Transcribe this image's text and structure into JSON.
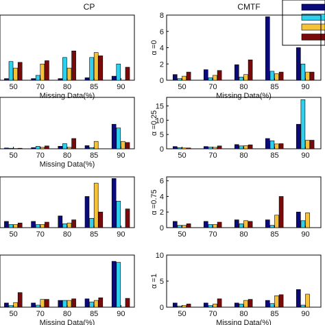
{
  "colors": {
    "series": [
      "#0a0a7a",
      "#2fd0ee",
      "#f6c23a",
      "#7a0a0a"
    ],
    "axis": "#000000"
  },
  "column_titles": [
    "CP",
    "CMTF"
  ],
  "legend": {
    "placement": "top-right",
    "labels_visible": false
  },
  "chart_data": [
    {
      "type": "bar",
      "panel": "CP, row 1",
      "title": "CP",
      "xlabel": "Missing Data(%)",
      "ylabel": "",
      "categories": [
        "50",
        "70",
        "80",
        "85",
        "90"
      ],
      "yticks": [],
      "ylim": [
        0,
        8
      ],
      "series": [
        {
          "values": [
            0.2,
            0.2,
            0.2,
            0.3,
            0.5
          ]
        },
        {
          "values": [
            2.3,
            0.6,
            2.8,
            2.8,
            2.0
          ]
        },
        {
          "values": [
            1.5,
            2.0,
            1.5,
            3.4,
            0.0
          ]
        },
        {
          "values": [
            2.2,
            2.4,
            3.6,
            3.0,
            1.6
          ]
        }
      ]
    },
    {
      "type": "bar",
      "panel": "CMTF, α=0",
      "title": "CMTF",
      "xlabel": "Missing Data(%)",
      "ylabel": "α =0",
      "categories": [
        "50",
        "70",
        "80",
        "85",
        "90"
      ],
      "yticks": [
        "0",
        "2",
        "4",
        "6",
        "8"
      ],
      "ylim": [
        0,
        8
      ],
      "series": [
        {
          "values": [
            0.7,
            1.3,
            1.9,
            7.8,
            4.0
          ]
        },
        {
          "values": [
            0.2,
            0.3,
            0.4,
            1.1,
            2.0
          ]
        },
        {
          "values": [
            0.5,
            0.6,
            0.7,
            0.8,
            1.0
          ]
        },
        {
          "values": [
            1.0,
            1.2,
            2.5,
            1.0,
            1.0
          ]
        }
      ]
    },
    {
      "type": "bar",
      "panel": "CP, row 2",
      "title": "",
      "xlabel": "Missing Data(%)",
      "ylabel": "",
      "categories": [
        "50",
        "70",
        "80",
        "85",
        "90"
      ],
      "yticks": [],
      "ylim": [
        0,
        18
      ],
      "series": [
        {
          "values": [
            0.3,
            0.4,
            0.9,
            1.1,
            8.6
          ]
        },
        {
          "values": [
            0.2,
            0.9,
            1.8,
            0.4,
            7.3
          ]
        },
        {
          "values": [
            0.1,
            0.5,
            0.5,
            2.6,
            2.6
          ]
        },
        {
          "values": [
            0.2,
            1.0,
            3.6,
            0.0,
            2.2
          ]
        }
      ]
    },
    {
      "type": "bar",
      "panel": "CMTF, α=0.25",
      "title": "",
      "xlabel": "",
      "ylabel": "α =0.25",
      "categories": [
        "50",
        "70",
        "80",
        "85",
        "90"
      ],
      "yticks": [
        "0",
        "5",
        "10",
        "15"
      ],
      "ylim": [
        0,
        18
      ],
      "series": [
        {
          "values": [
            0.8,
            0.8,
            1.5,
            3.6,
            8.6
          ]
        },
        {
          "values": [
            0.4,
            0.6,
            1.0,
            2.8,
            17.2
          ]
        },
        {
          "values": [
            0.3,
            0.5,
            1.1,
            1.7,
            3.0
          ]
        },
        {
          "values": [
            0.3,
            1.0,
            1.4,
            1.8,
            3.0
          ]
        }
      ]
    },
    {
      "type": "bar",
      "panel": "CP, row 3",
      "title": "",
      "xlabel": "",
      "ylabel": "",
      "categories": [
        "50",
        "70",
        "80",
        "85",
        "90"
      ],
      "yticks": [],
      "ylim": [
        0,
        6.5
      ],
      "series": [
        {
          "values": [
            0.8,
            0.8,
            1.5,
            4.0,
            6.3
          ]
        },
        {
          "values": [
            0.4,
            0.4,
            0.5,
            1.2,
            3.4
          ]
        },
        {
          "values": [
            0.4,
            0.4,
            0.6,
            5.7,
            0.0
          ]
        },
        {
          "values": [
            0.6,
            0.7,
            1.0,
            2.0,
            2.4
          ]
        }
      ]
    },
    {
      "type": "bar",
      "panel": "CMTF, α=0.75",
      "title": "",
      "xlabel": "",
      "ylabel": "α =0.75",
      "categories": [
        "50",
        "70",
        "80",
        "85",
        "90"
      ],
      "yticks": [
        "0",
        "2",
        "4",
        "6"
      ],
      "ylim": [
        0,
        6.5
      ],
      "series": [
        {
          "values": [
            0.8,
            0.8,
            1.0,
            1.0,
            2.0
          ]
        },
        {
          "values": [
            0.3,
            0.4,
            0.5,
            0.3,
            0.9
          ]
        },
        {
          "values": [
            0.3,
            0.4,
            0.9,
            1.6,
            1.9
          ]
        },
        {
          "values": [
            0.5,
            0.7,
            0.8,
            4.0,
            0.0
          ]
        }
      ]
    },
    {
      "type": "bar",
      "panel": "CP, row 4",
      "title": "",
      "xlabel": "Missing Data(%)",
      "ylabel": "",
      "categories": [
        "50",
        "70",
        "80",
        "85",
        "90"
      ],
      "yticks": [],
      "ylim": [
        0,
        10
      ],
      "series": [
        {
          "values": [
            0.8,
            0.8,
            1.3,
            1.6,
            8.8
          ]
        },
        {
          "values": [
            0.3,
            0.4,
            1.3,
            1.0,
            8.6
          ]
        },
        {
          "values": [
            0.9,
            1.5,
            1.3,
            1.3,
            0.0
          ]
        },
        {
          "values": [
            2.8,
            1.5,
            1.6,
            1.8,
            1.7
          ]
        }
      ]
    },
    {
      "type": "bar",
      "panel": "CMTF, α=1",
      "title": "",
      "xlabel": "Missing Data(%)",
      "ylabel": "α =1",
      "categories": [
        "50",
        "70",
        "80",
        "85",
        "90"
      ],
      "yticks": [
        "0",
        "5",
        "10"
      ],
      "ylim": [
        0,
        10
      ],
      "series": [
        {
          "values": [
            0.8,
            0.8,
            0.8,
            1.3,
            3.4
          ]
        },
        {
          "values": [
            0.2,
            0.3,
            0.6,
            0.7,
            0.4
          ]
        },
        {
          "values": [
            0.3,
            0.6,
            1.3,
            2.2,
            2.5
          ]
        },
        {
          "values": [
            0.6,
            1.6,
            1.5,
            2.4,
            0.0
          ]
        }
      ]
    }
  ]
}
